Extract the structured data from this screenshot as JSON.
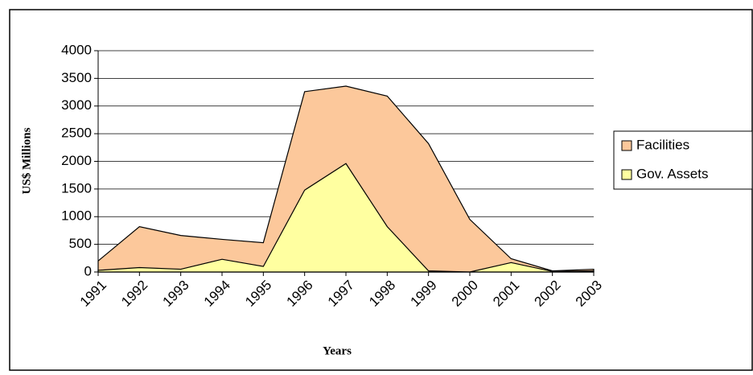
{
  "chart_data": {
    "type": "area",
    "x_label": "Years",
    "y_label": "US$ Millions",
    "categories": [
      "1991",
      "1992",
      "1993",
      "1994",
      "1995",
      "1996",
      "1997",
      "1998",
      "1999",
      "2000",
      "2001",
      "2002",
      "2003"
    ],
    "series": [
      {
        "name": "Facilities",
        "color": "#fcc89b",
        "values": [
          200,
          820,
          660,
          590,
          530,
          3260,
          3360,
          3180,
          2320,
          950,
          240,
          20,
          50
        ]
      },
      {
        "name": "Gov. Assets",
        "color": "#ffffa0",
        "values": [
          30,
          80,
          50,
          230,
          100,
          1480,
          1960,
          820,
          20,
          0,
          170,
          10,
          20
        ]
      }
    ],
    "ylim": [
      0,
      4000
    ],
    "yticks": [
      0,
      500,
      1000,
      1500,
      2000,
      2500,
      3000,
      3500,
      4000
    ],
    "grid": true,
    "legend": "right"
  }
}
